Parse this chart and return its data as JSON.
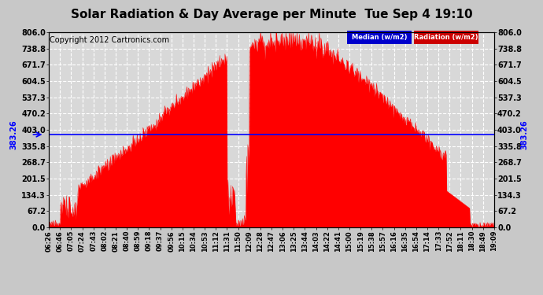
{
  "title": "Solar Radiation & Day Average per Minute  Tue Sep 4 19:10",
  "copyright": "Copyright 2012 Cartronics.com",
  "median_value": 383.26,
  "y_max": 806.0,
  "y_ticks": [
    0.0,
    67.2,
    134.3,
    201.5,
    268.7,
    335.8,
    403.0,
    470.2,
    537.3,
    604.5,
    671.7,
    738.8,
    806.0
  ],
  "x_labels": [
    "06:26",
    "06:46",
    "07:05",
    "07:24",
    "07:43",
    "08:02",
    "08:21",
    "08:40",
    "08:59",
    "09:18",
    "09:37",
    "09:56",
    "10:15",
    "10:34",
    "10:53",
    "11:12",
    "11:31",
    "11:50",
    "12:09",
    "12:28",
    "12:47",
    "13:06",
    "13:25",
    "13:44",
    "14:03",
    "14:22",
    "14:41",
    "15:00",
    "15:19",
    "15:38",
    "15:57",
    "16:16",
    "16:35",
    "16:54",
    "17:14",
    "17:33",
    "17:52",
    "18:11",
    "18:30",
    "18:49",
    "19:09"
  ],
  "fill_color": "#ff0000",
  "line_color": "#ff0000",
  "median_color": "#0000ff",
  "background_color": "#d8d8d8",
  "grid_color": "#ffffff",
  "legend_median_bg": "#0000cc",
  "legend_radiation_bg": "#cc0000",
  "title_fontsize": 11,
  "copyright_fontsize": 7,
  "median_label": "383.26",
  "left_median_label": "383.26"
}
